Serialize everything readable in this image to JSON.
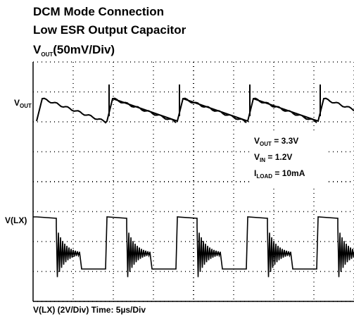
{
  "title": {
    "line1": "DCM Mode Connection",
    "line2": "Low ESR Output Capacitor",
    "line3": {
      "main": "V",
      "sub": "OUT",
      "rest": "(50mV/Div)"
    }
  },
  "labels": {
    "vout": {
      "main": "V",
      "sub": "OUT"
    },
    "vlx": "V(LX)"
  },
  "annotation": [
    {
      "main": "V",
      "sub": "OUT",
      "rest": " = 3.3V"
    },
    {
      "main": "V",
      "sub": "IN",
      "rest": " = 1.2V"
    },
    {
      "main": "I",
      "sub": "LOAD",
      "rest": " = 10mA"
    }
  ],
  "footer": "V(LX) (2V/Div) Time: 5µs/Div"
}
